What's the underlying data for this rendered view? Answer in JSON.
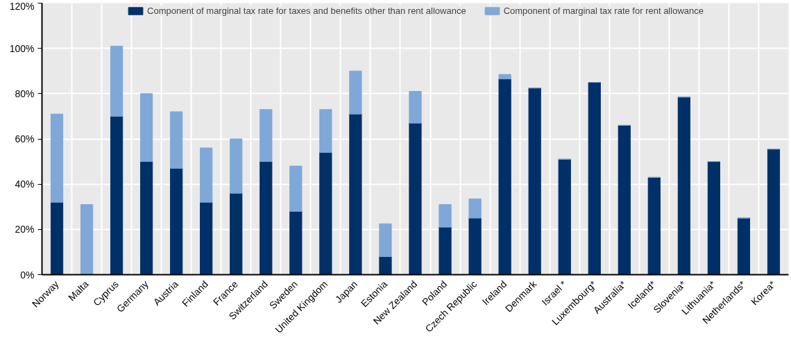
{
  "chart_data": {
    "type": "bar",
    "stacked": true,
    "categories": [
      "Norway",
      "Malta",
      "Cyprus",
      "Germany",
      "Austria",
      "Finland",
      "France",
      "Switzerland",
      "Sweden",
      "United Kingdom",
      "Japan",
      "Estonia",
      "New Zealand",
      "Poland",
      "Czech Republic",
      "Ireland",
      "Denmark",
      "Israel *",
      "Luxembourg*",
      "Australia*",
      "Iceland*",
      "Slovenia*",
      "Lithuania*",
      "Netherlands*",
      "Korea*"
    ],
    "series": [
      {
        "name": "Component of marginal tax rate for taxes and benefits other than rent allowance",
        "color": "#003068",
        "values": [
          32,
          0,
          70,
          50,
          47,
          32,
          36,
          50,
          28,
          54,
          71,
          8,
          67,
          21,
          25,
          86.5,
          82.5,
          51,
          85,
          66,
          43,
          78.5,
          50,
          25,
          55.5
        ]
      },
      {
        "name": "Component of marginal tax rate for rent allowance",
        "color": "#7fa7d8",
        "values": [
          39,
          31,
          31,
          30,
          25,
          24,
          24,
          23,
          20,
          19,
          19,
          14.5,
          14,
          10,
          8.5,
          2,
          0,
          0,
          0,
          0,
          0,
          0,
          0,
          0,
          0
        ]
      }
    ],
    "ylim": [
      0,
      120
    ],
    "yticks": [
      {
        "value": 0,
        "label": "0%"
      },
      {
        "value": 20,
        "label": "20%"
      },
      {
        "value": 40,
        "label": "40%"
      },
      {
        "value": 60,
        "label": "60%"
      },
      {
        "value": 80,
        "label": "80%"
      },
      {
        "value": 100,
        "label": "100%"
      },
      {
        "value": 120,
        "label": "120%"
      }
    ],
    "grid": true,
    "legend": "top"
  }
}
